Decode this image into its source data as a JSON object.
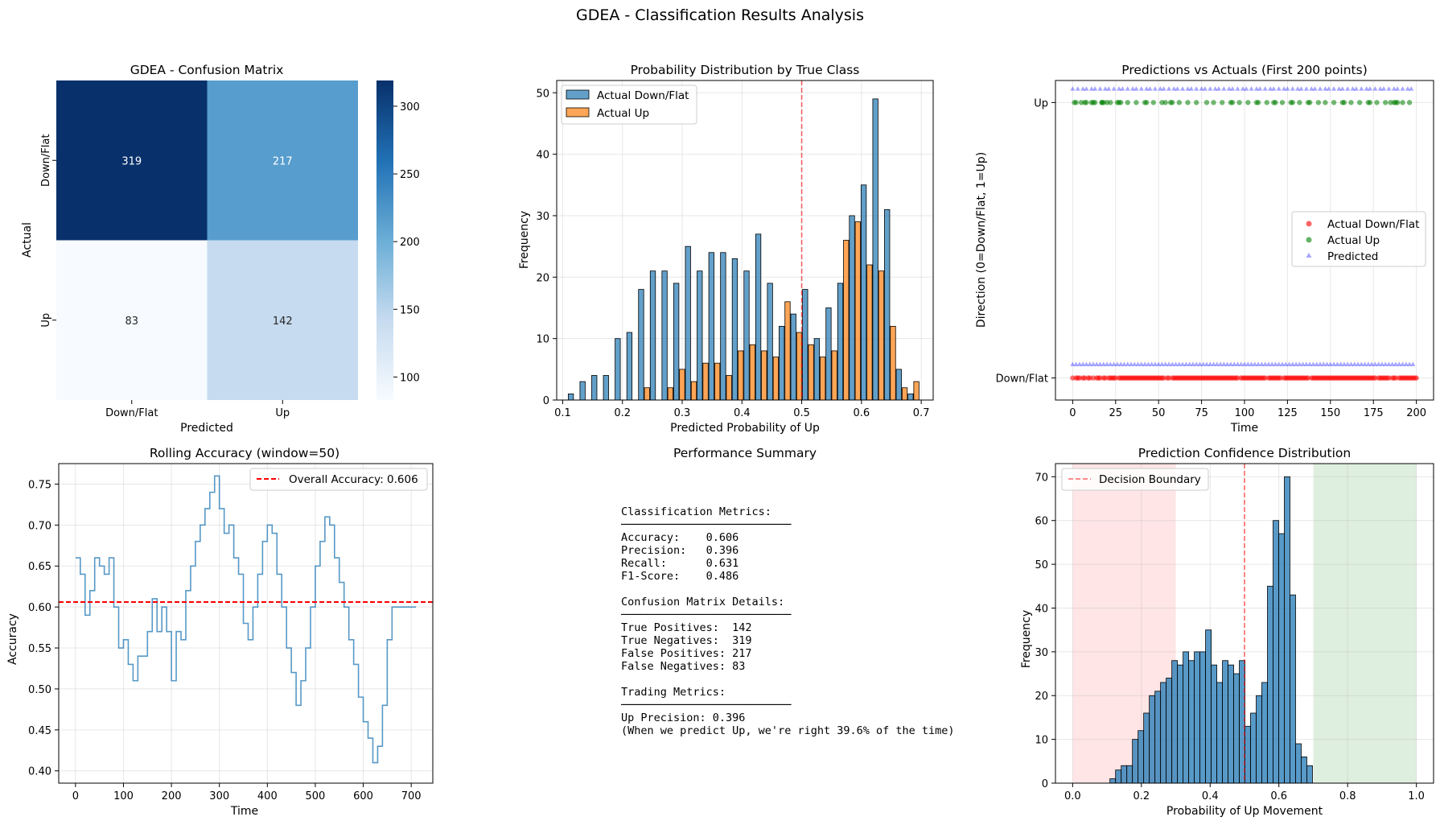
{
  "figure": {
    "title": "GDEA - Classification Results Analysis"
  },
  "chart_data": [
    {
      "type": "heatmap",
      "title": "GDEA - Confusion Matrix",
      "xlabel": "Predicted",
      "ylabel": "Actual",
      "x_categories": [
        "Down/Flat",
        "Up"
      ],
      "y_categories": [
        "Down/Flat",
        "Up"
      ],
      "values": [
        [
          319,
          217
        ],
        [
          83,
          142
        ]
      ],
      "colormap": "Blues",
      "colorbar": {
        "range": [
          83,
          319
        ],
        "ticks": [
          "100",
          "150",
          "200",
          "250",
          "300"
        ]
      }
    },
    {
      "type": "bar",
      "title": "Probability Distribution by True Class",
      "xlabel": "Predicted Probability of Up",
      "ylabel": "Frequency",
      "xlim": [
        0.09,
        0.72
      ],
      "ylim": [
        0,
        52
      ],
      "bin_width": 0.0196,
      "x_ticks": [
        "0.1",
        "0.2",
        "0.3",
        "0.4",
        "0.5",
        "0.6",
        "0.7"
      ],
      "y_ticks": [
        "0",
        "10",
        "20",
        "30",
        "40",
        "50"
      ],
      "threshold": 0.5,
      "legend_position": "top-left",
      "grid": true,
      "series": [
        {
          "name": "Actual Down/Flat",
          "color": "#1f77b4",
          "x": [
            0.1186,
            0.1382,
            0.1578,
            0.1774,
            0.197,
            0.2166,
            0.2362,
            0.2558,
            0.2754,
            0.295,
            0.3146,
            0.3342,
            0.3538,
            0.3734,
            0.393,
            0.4126,
            0.4322,
            0.4518,
            0.4714,
            0.491,
            0.5106,
            0.5302,
            0.5498,
            0.5694,
            0.589,
            0.6086,
            0.6282,
            0.6478,
            0.6674,
            0.687
          ],
          "values": [
            1,
            3,
            4,
            4,
            10,
            11,
            18,
            21,
            21,
            19,
            25,
            21,
            24,
            24,
            23,
            21,
            27,
            19,
            12,
            14,
            18,
            10,
            15,
            19,
            30,
            35,
            49,
            31,
            5,
            1
          ]
        },
        {
          "name": "Actual Up",
          "color": "#ff7f0e",
          "x": [
            0.1186,
            0.1382,
            0.1578,
            0.1774,
            0.197,
            0.2166,
            0.2362,
            0.2558,
            0.2754,
            0.295,
            0.3146,
            0.3342,
            0.3538,
            0.3734,
            0.393,
            0.4126,
            0.4322,
            0.4518,
            0.4714,
            0.491,
            0.5106,
            0.5302,
            0.5498,
            0.5694,
            0.589,
            0.6086,
            0.6282,
            0.6478,
            0.6674,
            0.687
          ],
          "values": [
            0,
            0,
            0,
            0,
            0,
            0,
            2,
            0,
            2,
            5,
            3,
            6,
            6,
            4,
            8,
            9,
            8,
            7,
            16,
            11,
            9,
            7,
            8,
            26,
            29,
            22,
            21,
            12,
            2,
            3
          ]
        }
      ]
    },
    {
      "type": "scatter",
      "title": "Predictions vs Actuals (First 200 points)",
      "xlabel": "Time",
      "ylabel": "Direction (0=Down/Flat, 1=Up)",
      "xlim": [
        -10,
        210
      ],
      "ylim": [
        -0.08,
        1.08
      ],
      "x_ticks": [
        "0",
        "25",
        "50",
        "75",
        "100",
        "125",
        "150",
        "175",
        "200"
      ],
      "y_ticks": [
        "Down/Flat",
        "Up"
      ],
      "legend_position": "center-right",
      "grid": true,
      "series": [
        {
          "name": "Actual Down/Flat",
          "color": "#ff0000",
          "marker": "circle",
          "x": [
            0,
            2,
            3,
            4,
            6,
            7,
            9,
            10,
            12,
            14,
            15,
            16,
            18,
            19,
            21,
            22,
            23,
            24,
            25,
            27,
            28,
            29,
            30,
            31,
            32,
            33,
            34,
            35,
            36,
            37,
            38,
            39,
            40,
            41,
            42,
            43,
            44,
            45,
            46,
            47,
            48,
            49,
            50,
            51,
            52,
            53,
            55,
            56,
            58,
            59,
            60,
            61,
            62,
            63,
            64,
            65,
            66,
            67,
            68,
            69,
            70,
            71,
            72,
            73,
            74,
            75,
            76,
            77,
            78,
            79,
            80,
            81,
            82,
            83,
            84,
            85,
            86,
            87,
            88,
            89,
            90,
            91,
            92,
            93,
            94,
            95,
            96,
            98,
            99,
            100,
            101,
            102,
            103,
            104,
            105,
            106,
            107,
            108,
            109,
            110,
            111,
            112,
            114,
            115,
            116,
            117,
            118,
            119,
            120,
            121,
            123,
            124,
            125,
            126,
            127,
            128,
            129,
            130,
            131,
            132,
            133,
            134,
            135,
            136,
            137,
            139,
            140,
            141,
            142,
            143,
            144,
            145,
            146,
            147,
            148,
            149,
            150,
            151,
            152,
            153,
            154,
            155,
            156,
            157,
            158,
            159,
            160,
            161,
            162,
            163,
            164,
            165,
            166,
            167,
            168,
            169,
            170,
            171,
            172,
            173,
            174,
            175,
            176,
            178,
            179,
            180,
            181,
            182,
            183,
            184,
            186,
            187,
            188,
            190,
            191,
            192,
            193,
            194,
            195,
            196,
            197,
            198,
            199,
            200
          ],
          "y": 0
        },
        {
          "name": "Actual Up",
          "color": "#008000",
          "marker": "circle",
          "x": [
            1,
            5,
            8,
            11,
            13,
            17,
            20,
            26,
            54,
            57,
            97,
            113,
            122,
            138,
            177,
            185,
            189,
            2,
            7,
            12,
            17,
            22,
            27,
            32,
            37,
            42,
            47,
            52,
            62,
            67,
            72,
            82,
            87,
            92,
            102,
            107,
            117,
            127,
            132,
            137,
            147,
            152,
            157,
            162,
            167,
            172,
            182,
            187,
            192,
            196,
            18,
            28,
            43,
            58,
            78,
            93,
            108,
            118,
            128,
            143,
            158,
            173,
            188
          ],
          "y": 1
        },
        {
          "name": "Predicted",
          "color": "#0000ff",
          "marker": "triangle",
          "x_at_1": [
            0,
            3,
            6,
            8,
            11,
            13,
            16,
            19,
            21,
            24,
            27,
            29,
            32,
            35,
            37,
            40,
            43,
            45,
            48,
            51,
            53,
            56,
            59,
            61,
            64,
            67,
            69,
            72,
            75,
            77,
            80,
            83,
            85,
            88,
            91,
            93,
            96,
            99,
            101,
            104,
            107,
            109,
            112,
            115,
            117,
            120,
            123,
            125,
            128,
            131,
            133,
            136,
            139,
            141,
            144,
            147,
            149,
            152,
            155,
            157,
            160,
            163,
            165,
            168,
            171,
            173,
            176,
            179,
            181,
            184,
            187,
            189,
            192,
            195,
            197
          ],
          "x_at_0": [
            0,
            2,
            4,
            6,
            8,
            10,
            12,
            14,
            16,
            18,
            20,
            22,
            24,
            26,
            28,
            30,
            32,
            34,
            36,
            38,
            40,
            42,
            44,
            46,
            48,
            50,
            52,
            54,
            56,
            58,
            60,
            62,
            64,
            66,
            68,
            70,
            72,
            74,
            76,
            78,
            80,
            82,
            84,
            86,
            88,
            90,
            92,
            94,
            96,
            98,
            100,
            102,
            104,
            106,
            108,
            110,
            112,
            114,
            116,
            118,
            120,
            122,
            124,
            126,
            128,
            130,
            132,
            134,
            136,
            138,
            140,
            142,
            144,
            146,
            148,
            150,
            152,
            154,
            156,
            158,
            160,
            162,
            164,
            166,
            168,
            170,
            172,
            174,
            176,
            178,
            180,
            182,
            184,
            186,
            188,
            190,
            192,
            194,
            196,
            198
          ]
        }
      ]
    },
    {
      "type": "line",
      "title": "Rolling Accuracy (window=50)",
      "xlabel": "Time",
      "ylabel": "Accuracy",
      "xlim": [
        -35,
        745
      ],
      "ylim": [
        0.385,
        0.775
      ],
      "x_ticks": [
        "0",
        "100",
        "200",
        "300",
        "400",
        "500",
        "600",
        "700"
      ],
      "y_ticks": [
        "0.40",
        "0.45",
        "0.50",
        "0.55",
        "0.60",
        "0.65",
        "0.70",
        "0.75"
      ],
      "overall_accuracy": 0.606,
      "legend": "Overall Accuracy: 0.606",
      "legend_position": "top-right",
      "grid": true,
      "series": [
        {
          "name": "Rolling Accuracy",
          "color": "#1f77b4",
          "x": [
            0,
            10,
            20,
            30,
            40,
            50,
            60,
            70,
            80,
            90,
            100,
            110,
            120,
            130,
            140,
            150,
            160,
            170,
            180,
            190,
            200,
            210,
            220,
            230,
            240,
            250,
            260,
            270,
            280,
            290,
            300,
            310,
            320,
            330,
            340,
            350,
            360,
            370,
            380,
            390,
            400,
            410,
            420,
            430,
            440,
            450,
            460,
            470,
            480,
            490,
            500,
            510,
            520,
            530,
            540,
            550,
            560,
            570,
            580,
            590,
            600,
            610,
            620,
            630,
            640,
            650,
            660,
            670,
            680,
            690,
            700,
            710
          ],
          "values": [
            0.66,
            0.64,
            0.59,
            0.62,
            0.66,
            0.65,
            0.64,
            0.66,
            0.6,
            0.55,
            0.56,
            0.53,
            0.51,
            0.54,
            0.54,
            0.57,
            0.61,
            0.57,
            0.6,
            0.57,
            0.51,
            0.57,
            0.56,
            0.62,
            0.65,
            0.68,
            0.7,
            0.72,
            0.74,
            0.76,
            0.72,
            0.69,
            0.7,
            0.66,
            0.64,
            0.58,
            0.56,
            0.6,
            0.64,
            0.68,
            0.7,
            0.69,
            0.64,
            0.6,
            0.55,
            0.52,
            0.48,
            0.51,
            0.55,
            0.6,
            0.65,
            0.68,
            0.71,
            0.7,
            0.66,
            0.63,
            0.6,
            0.56,
            0.53,
            0.49,
            0.46,
            0.44,
            0.41,
            0.43,
            0.48,
            0.56,
            0.6,
            0.6,
            0.6,
            0.6,
            0.6,
            0.6
          ]
        }
      ]
    },
    {
      "type": "table",
      "title": "Performance Summary",
      "lines": [
        "Classification Metrics:",
        "──────────────────────────",
        "Accuracy:    0.606",
        "Precision:   0.396",
        "Recall:      0.631",
        "F1-Score:    0.486",
        "",
        "Confusion Matrix Details:",
        "──────────────────────────",
        "True Positives:  142",
        "True Negatives:  319",
        "False Positives: 217",
        "False Negatives: 83",
        "",
        "Trading Metrics:",
        "──────────────────────────",
        "Up Precision: 0.396",
        "(When we predict Up, we're right 39.6% of the time)"
      ]
    },
    {
      "type": "bar",
      "title": "Prediction Confidence Distribution",
      "xlabel": "Probability of Up Movement",
      "ylabel": "Frequency",
      "xlim": [
        -0.05,
        1.05
      ],
      "ylim": [
        0,
        73
      ],
      "bin_width": 0.01636,
      "x_ticks": [
        "0.0",
        "0.2",
        "0.4",
        "0.6",
        "0.8",
        "1.0"
      ],
      "y_ticks": [
        "0",
        "10",
        "20",
        "30",
        "40",
        "50",
        "60",
        "70"
      ],
      "decision_boundary": 0.5,
      "legend": "Decision Boundary",
      "legend_position": "top-left",
      "regions": [
        {
          "from": 0.0,
          "to": 0.3,
          "color": "#ff9999"
        },
        {
          "from": 0.7,
          "to": 1.0,
          "color": "#7fbf7f"
        }
      ],
      "grid": true,
      "series": [
        {
          "name": "Frequency",
          "color": "#1f77b4",
          "x": [
            0.1166,
            0.133,
            0.1494,
            0.1657,
            0.1821,
            0.1985,
            0.2148,
            0.2312,
            0.2476,
            0.2639,
            0.2803,
            0.2967,
            0.313,
            0.3294,
            0.3458,
            0.3621,
            0.3785,
            0.3949,
            0.4112,
            0.4276,
            0.444,
            0.4603,
            0.4767,
            0.4931,
            0.5094,
            0.5258,
            0.5422,
            0.5585,
            0.5749,
            0.5913,
            0.6076,
            0.624,
            0.6404,
            0.6567,
            0.6731,
            0.6895
          ],
          "values": [
            1,
            3,
            4,
            4,
            10,
            12,
            16,
            20,
            21,
            23,
            24,
            28,
            27,
            30,
            28,
            30,
            30,
            35,
            27,
            23,
            28,
            27,
            25,
            28,
            13,
            16,
            20,
            23,
            45,
            60,
            57,
            70,
            43,
            9,
            6,
            4
          ]
        }
      ]
    }
  ]
}
